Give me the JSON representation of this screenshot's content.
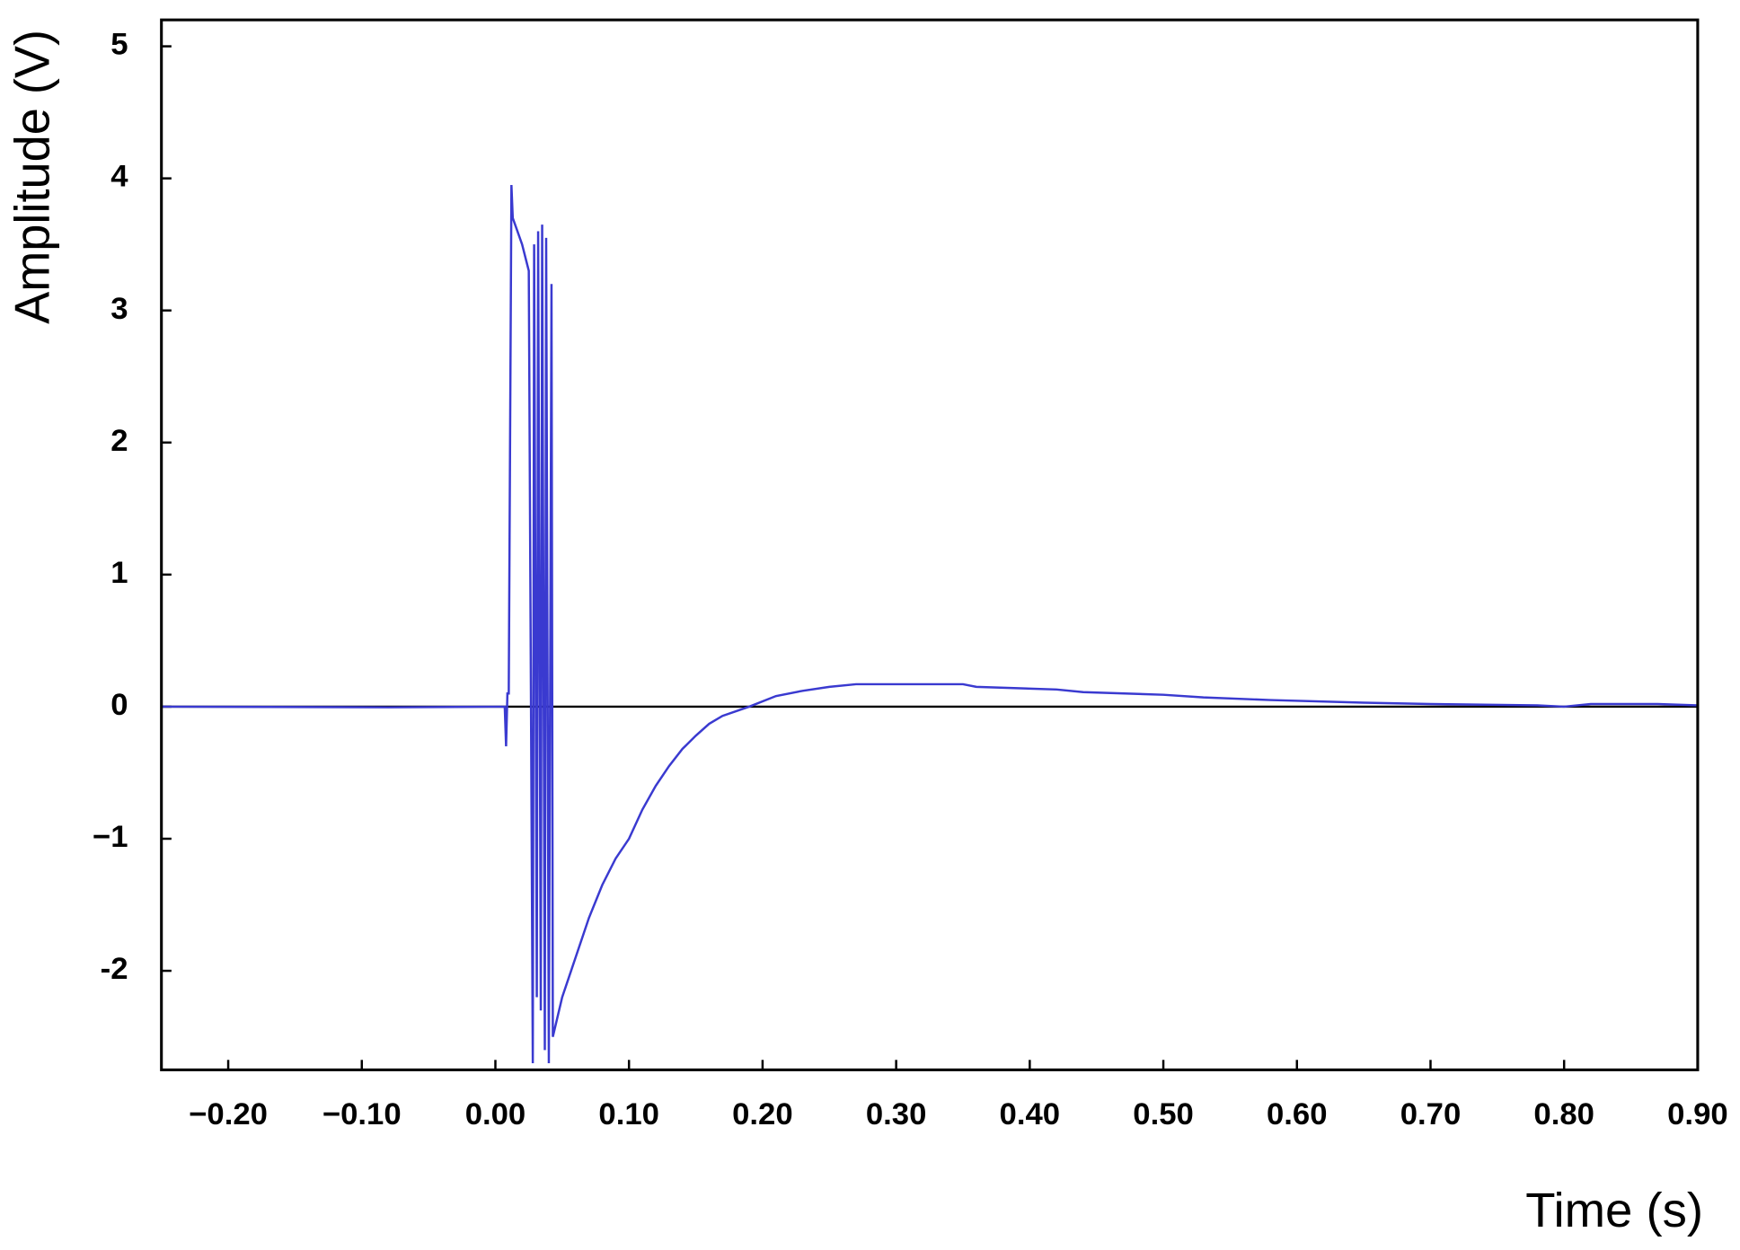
{
  "chart_data": {
    "type": "line",
    "xlabel": "Time (s)",
    "ylabel": "Amplitude (V)",
    "xlim": [
      -0.25,
      0.9
    ],
    "ylim": [
      -2.75,
      5.2
    ],
    "xticks": [
      {
        "value": -0.2,
        "label": "−0.20"
      },
      {
        "value": -0.1,
        "label": "−0.10"
      },
      {
        "value": 0,
        "label": "0.00"
      },
      {
        "value": 0.1,
        "label": "0.10"
      },
      {
        "value": 0.2,
        "label": "0.20"
      },
      {
        "value": 0.3,
        "label": "0.30"
      },
      {
        "value": 0.4,
        "label": "0.40"
      },
      {
        "value": 0.5,
        "label": "0.50"
      },
      {
        "value": 0.6,
        "label": "0.60"
      },
      {
        "value": 0.7,
        "label": "0.70"
      },
      {
        "value": 0.8,
        "label": "0.80"
      },
      {
        "value": 0.9,
        "label": "0.90"
      }
    ],
    "yticks": [
      -2,
      {
        "value": -1,
        "label": "−1"
      },
      0,
      1,
      2,
      3,
      4,
      5
    ],
    "series": [
      {
        "color": "#3a3ad0",
        "x": [
          -0.25,
          -0.08,
          0.007,
          0.008,
          0.009,
          0.01,
          0.012,
          0.013,
          0.02,
          0.025,
          0.028,
          0.029,
          0.031,
          0.032,
          0.034,
          0.035,
          0.037,
          0.038,
          0.04,
          0.042,
          0.043,
          0.05,
          0.06,
          0.07,
          0.08,
          0.09,
          0.1,
          0.11,
          0.12,
          0.13,
          0.14,
          0.15,
          0.16,
          0.17,
          0.19,
          0.21,
          0.23,
          0.25,
          0.27,
          0.35,
          0.36,
          0.42,
          0.44,
          0.5,
          0.53,
          0.58,
          0.65,
          0.7,
          0.78,
          0.8,
          0.82,
          0.87,
          0.9
        ],
        "values": [
          0,
          -0.005,
          0,
          -0.3,
          0.1,
          0.1,
          3.95,
          3.7,
          3.5,
          3.3,
          -2.7,
          3.5,
          -2.2,
          3.6,
          -2.3,
          3.65,
          -2.6,
          3.55,
          -2.7,
          3.2,
          -2.5,
          -2.2,
          -1.9,
          -1.6,
          -1.35,
          -1.15,
          -1.0,
          -0.78,
          -0.6,
          -0.45,
          -0.32,
          -0.22,
          -0.13,
          -0.07,
          0.0,
          0.08,
          0.12,
          0.15,
          0.17,
          0.17,
          0.15,
          0.13,
          0.11,
          0.09,
          0.07,
          0.05,
          0.03,
          0.02,
          0.01,
          0.0,
          0.02,
          0.02,
          0.01
        ]
      }
    ]
  }
}
